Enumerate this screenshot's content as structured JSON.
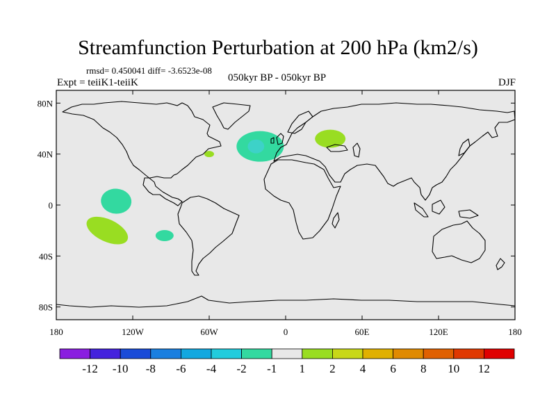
{
  "title": "Streamfunction Perturbation at 200 hPa (km2/s)",
  "stats_line": "rmsd= 0.450041 diff= -3.6523e-08",
  "experiment": "Expt = teiiK1-teiiK",
  "period": "050kyr BP - 050kyr BP",
  "season": "DJF",
  "map": {
    "projection": "cylindrical-equidistant",
    "ocean_land_fill": "#e8e8e8",
    "lat_ticks": [
      "80N",
      "40N",
      "0",
      "40S",
      "80S"
    ],
    "lon_ticks": [
      "180",
      "120W",
      "60W",
      "0",
      "60E",
      "120E",
      "180"
    ]
  },
  "anomalies": [
    {
      "name": "north-atlantic-negative",
      "lon": -20,
      "lat": 46,
      "value_class": "-2 to -1",
      "color": "#33d9a0",
      "inner_color": "#3dd2c8"
    },
    {
      "name": "europe-positive",
      "lon": 35,
      "lat": 52,
      "value_class": "1 to 2",
      "color": "#99dd22"
    },
    {
      "name": "east-us-positive",
      "lon": -60,
      "lat": 40,
      "value_class": "1 to 2",
      "color": "#99dd22"
    },
    {
      "name": "tropical-pacific-negative",
      "lon": -133,
      "lat": 3,
      "value_class": "-2 to -1",
      "color": "#33d9a0"
    },
    {
      "name": "south-pacific-positive",
      "lon": -140,
      "lat": -20,
      "value_class": "1 to 2",
      "color": "#99dd22"
    },
    {
      "name": "south-east-pacific-negative",
      "lon": -95,
      "lat": -24,
      "value_class": "-2 to -1",
      "color": "#33d9a0"
    }
  ],
  "colorbar": {
    "labels": [
      "-12",
      "-10",
      "-8",
      "-6",
      "-4",
      "-2",
      "-1",
      "1",
      "2",
      "4",
      "6",
      "8",
      "10",
      "12"
    ],
    "colors": [
      "#8a1ee0",
      "#4422dd",
      "#1a4bd8",
      "#1a7fe0",
      "#12a8e0",
      "#22ccdd",
      "#33d9a0",
      "#e8e8e8",
      "#99dd22",
      "#c8d818",
      "#e0b000",
      "#e08a00",
      "#e06000",
      "#e03800",
      "#e00000"
    ]
  }
}
